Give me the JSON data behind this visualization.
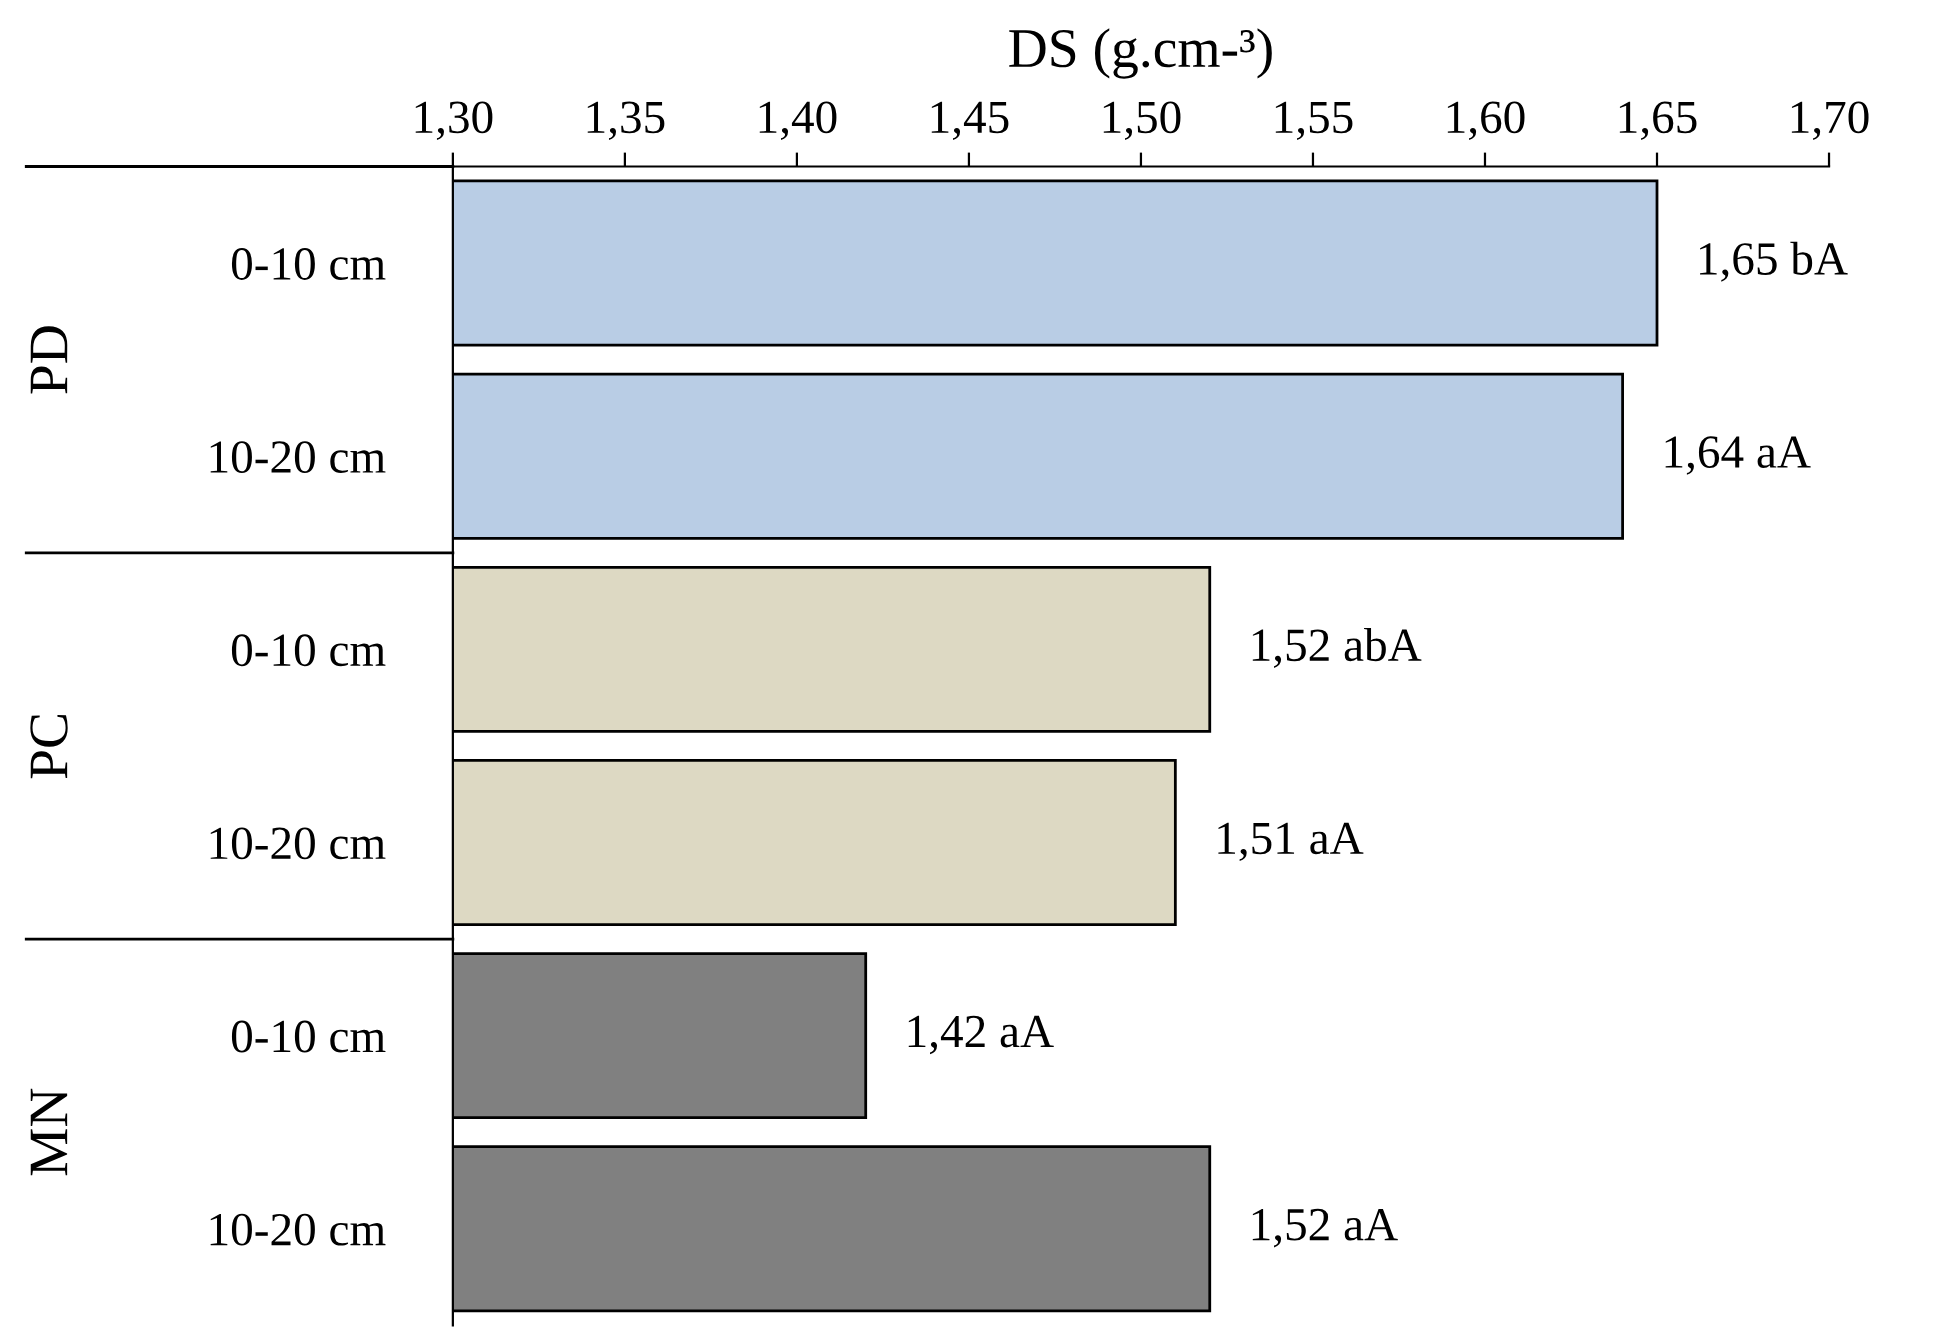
{
  "chart_data": {
    "type": "bar",
    "orientation": "horizontal",
    "xlabel": "DS (g.cm-³)",
    "categories": [
      "0-10 cm",
      "10-20 cm",
      "0-10 cm",
      "10-20 cm",
      "0-10 cm",
      "10-20 cm"
    ],
    "values": [
      1.65,
      1.64,
      1.52,
      1.51,
      1.42,
      1.52
    ],
    "colors": [
      "#b9cde5",
      "#b9cde5",
      "#ddd9c3",
      "#ddd9c3",
      "#808080",
      "#808080"
    ],
    "value_labels": [
      "1,65 bA",
      "1,64 aA",
      "1,52 abA",
      "1,51 aA",
      "1,42 aA",
      "1,52 aA"
    ],
    "annotations": [
      "PD",
      "PC",
      "MN"
    ],
    "xlim": [
      1.3,
      1.7
    ],
    "xticks": [
      {
        "value": 1.3,
        "label": "1,30"
      },
      {
        "value": 1.35,
        "label": "1,35"
      },
      {
        "value": 1.4,
        "label": "1,40"
      },
      {
        "value": 1.45,
        "label": "1,45"
      },
      {
        "value": 1.5,
        "label": "1,50"
      },
      {
        "value": 1.55,
        "label": "1,55"
      },
      {
        "value": 1.6,
        "label": "1,60"
      },
      {
        "value": 1.65,
        "label": "1,65"
      },
      {
        "value": 1.7,
        "label": "1,70"
      }
    ],
    "grid": false,
    "legend": false
  }
}
